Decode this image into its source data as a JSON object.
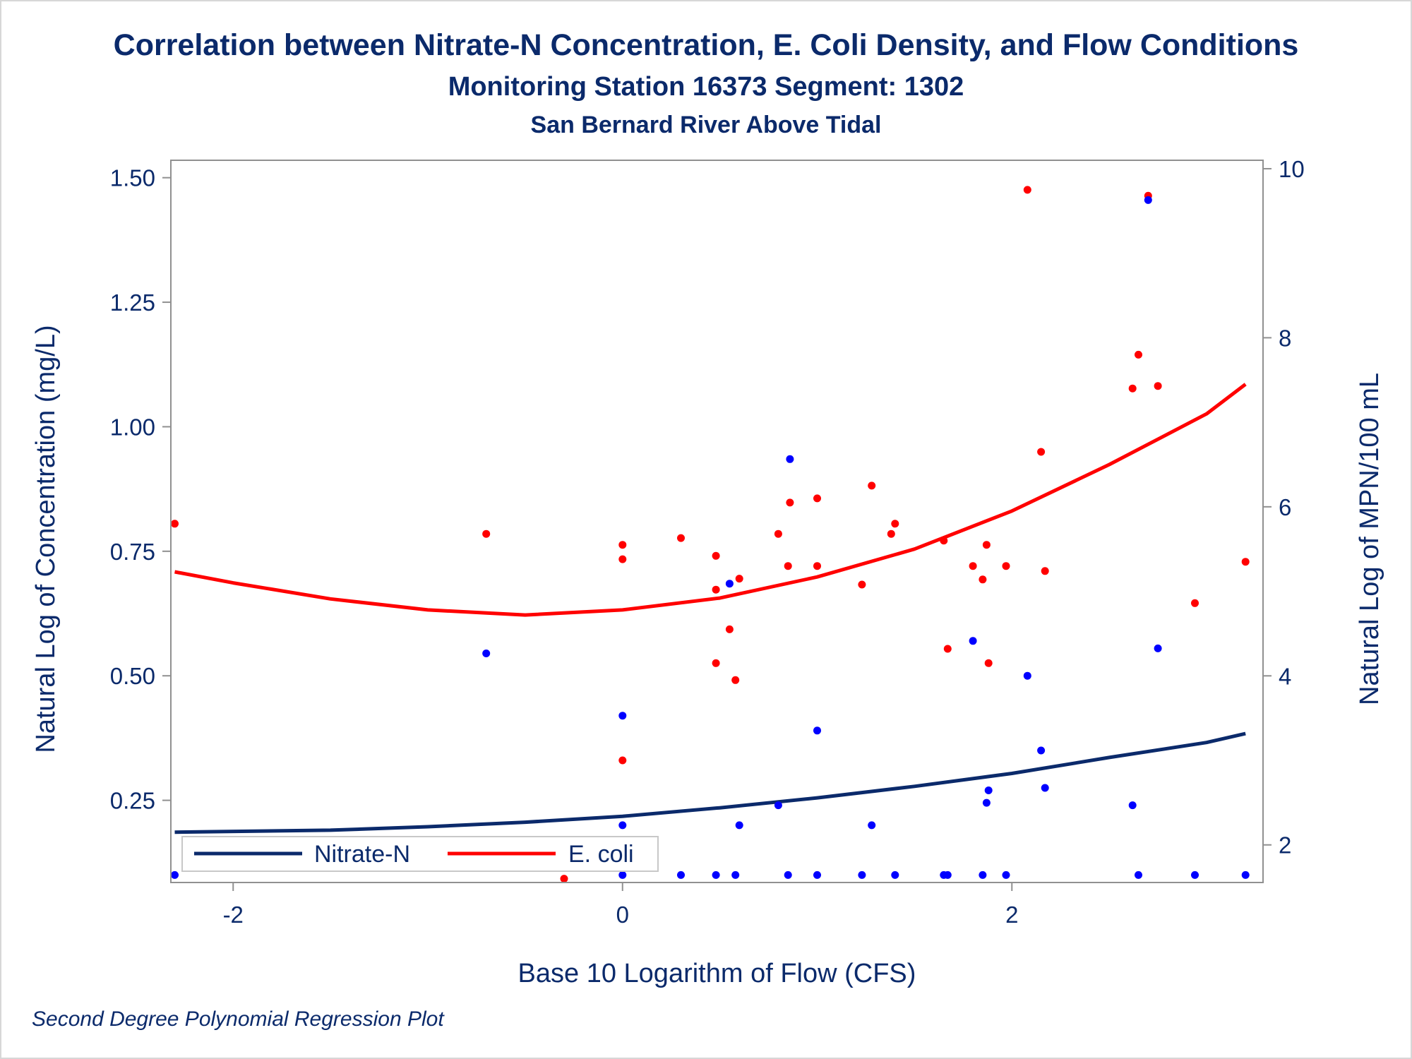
{
  "titles": {
    "title": "Correlation between Nitrate-N Concentration, E. Coli Density, and Flow Conditions",
    "subtitle": "Monitoring Station 16373 Segment: 1302",
    "subtitle2": "San Bernard River Above Tidal"
  },
  "footnote": "Second Degree Polynomial Regression Plot",
  "colors": {
    "nitrate": "#0b2a6b",
    "nitrate_points": "#0000ff",
    "ecoli": "#ff0000",
    "text": "#0b2a6b",
    "axis": "#909090"
  },
  "chart_data": {
    "type": "scatter",
    "title": "Correlation between Nitrate-N Concentration, E. Coli Density, and Flow Conditions",
    "xlabel": "Base 10 Logarithm of Flow (CFS)",
    "ylabel": "Natural Log of Concentration (mg/L)",
    "y2label": "Natural Log of MPN/100 mL",
    "xlim": [
      -2.32,
      3.29
    ],
    "ylim": [
      0.085,
      1.535
    ],
    "y2lim": [
      1.555,
      10.1
    ],
    "xticks": [
      -2,
      0,
      2
    ],
    "xtick_labels": [
      "-2",
      "0",
      "2"
    ],
    "yticks": [
      0.25,
      0.5,
      0.75,
      1.0,
      1.25,
      1.5
    ],
    "ytick_labels": [
      "0.25",
      "0.50",
      "0.75",
      "1.00",
      "1.25",
      "1.50"
    ],
    "y2ticks": [
      2,
      4,
      6,
      8,
      10
    ],
    "y2tick_labels": [
      "2",
      "4",
      "6",
      "8",
      "10"
    ],
    "grid": false,
    "legend_position": "bottom-left",
    "legend": [
      "Nitrate-N",
      "E. coli"
    ],
    "series": [
      {
        "name": "Nitrate-N",
        "axis": "left",
        "points": [
          [
            -2.3,
            0.1
          ],
          [
            -0.7,
            0.545
          ],
          [
            0.0,
            0.42
          ],
          [
            0.0,
            0.2
          ],
          [
            0.0,
            0.1
          ],
          [
            0.3,
            0.1
          ],
          [
            0.48,
            0.1
          ],
          [
            0.55,
            0.685
          ],
          [
            0.58,
            0.1
          ],
          [
            0.6,
            0.2
          ],
          [
            0.8,
            0.24
          ],
          [
            0.86,
            0.935
          ],
          [
            0.85,
            0.1
          ],
          [
            1.0,
            0.1
          ],
          [
            1.0,
            0.39
          ],
          [
            1.23,
            0.1
          ],
          [
            1.28,
            0.2
          ],
          [
            1.4,
            0.1
          ],
          [
            1.65,
            0.1
          ],
          [
            1.67,
            0.1
          ],
          [
            1.8,
            0.57
          ],
          [
            1.85,
            0.1
          ],
          [
            1.87,
            0.245
          ],
          [
            1.88,
            0.27
          ],
          [
            1.97,
            0.1
          ],
          [
            2.08,
            0.5
          ],
          [
            2.15,
            0.35
          ],
          [
            2.17,
            0.275
          ],
          [
            2.62,
            0.24
          ],
          [
            2.65,
            0.1
          ],
          [
            2.7,
            1.455
          ],
          [
            2.75,
            0.555
          ],
          [
            2.94,
            0.1
          ],
          [
            3.2,
            0.1
          ]
        ],
        "fit": [
          [
            -2.3,
            0.186
          ],
          [
            -1.5,
            0.19
          ],
          [
            -1.0,
            0.197
          ],
          [
            -0.5,
            0.206
          ],
          [
            0.0,
            0.218
          ],
          [
            0.5,
            0.235
          ],
          [
            1.0,
            0.255
          ],
          [
            1.5,
            0.278
          ],
          [
            2.0,
            0.304
          ],
          [
            2.5,
            0.336
          ],
          [
            3.0,
            0.366
          ],
          [
            3.2,
            0.384
          ]
        ]
      },
      {
        "name": "E. coli",
        "axis": "right",
        "points": [
          [
            -2.3,
            5.8
          ],
          [
            -0.7,
            5.68
          ],
          [
            -0.3,
            1.6
          ],
          [
            0.0,
            5.55
          ],
          [
            0.0,
            5.38
          ],
          [
            0.0,
            3.0
          ],
          [
            0.3,
            5.63
          ],
          [
            0.48,
            5.42
          ],
          [
            0.48,
            5.02
          ],
          [
            0.48,
            4.15
          ],
          [
            0.55,
            4.55
          ],
          [
            0.58,
            3.95
          ],
          [
            0.6,
            5.15
          ],
          [
            0.8,
            5.68
          ],
          [
            0.85,
            5.3
          ],
          [
            0.86,
            6.05
          ],
          [
            1.0,
            6.1
          ],
          [
            1.0,
            5.3
          ],
          [
            1.23,
            5.08
          ],
          [
            1.28,
            6.25
          ],
          [
            1.38,
            5.68
          ],
          [
            1.4,
            5.8
          ],
          [
            1.65,
            5.6
          ],
          [
            1.67,
            4.32
          ],
          [
            1.8,
            5.3
          ],
          [
            1.85,
            5.14
          ],
          [
            1.87,
            5.55
          ],
          [
            1.88,
            4.15
          ],
          [
            1.97,
            5.3
          ],
          [
            2.08,
            9.75
          ],
          [
            2.15,
            6.65
          ],
          [
            2.17,
            5.24
          ],
          [
            2.62,
            7.4
          ],
          [
            2.65,
            7.8
          ],
          [
            2.7,
            9.68
          ],
          [
            2.75,
            7.43
          ],
          [
            2.94,
            4.86
          ],
          [
            3.2,
            5.35
          ]
        ],
        "fit": [
          [
            -2.3,
            5.23
          ],
          [
            -2.0,
            5.1
          ],
          [
            -1.5,
            4.91
          ],
          [
            -1.0,
            4.78
          ],
          [
            -0.5,
            4.72
          ],
          [
            0.0,
            4.78
          ],
          [
            0.5,
            4.92
          ],
          [
            1.0,
            5.17
          ],
          [
            1.5,
            5.5
          ],
          [
            2.0,
            5.95
          ],
          [
            2.5,
            6.5
          ],
          [
            3.0,
            7.1
          ],
          [
            3.2,
            7.45
          ]
        ]
      }
    ]
  }
}
